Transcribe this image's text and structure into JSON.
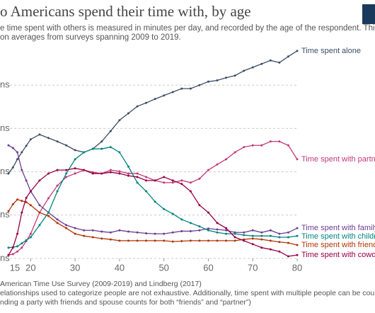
{
  "chart_data": {
    "type": "line",
    "title": "o Americans spend their time with, by age",
    "subtitle": [
      "e time spent with others is measured in minutes per day, and recorded by the age of the respondent. This is",
      "on averages from surveys spanning 2009 to 2019."
    ],
    "source": "American Time Use Survey (2009-2019) and Lindberg (2017)",
    "notes": [
      "elationships used to categorize people are not exhaustive. Additionally, time spent with multiple people can be counted more than",
      "nding a party with friends and spouse counts for both “friends” and “partner”)"
    ],
    "x": [
      15,
      16,
      17,
      18,
      19,
      20,
      22,
      24,
      26,
      28,
      30,
      32,
      34,
      36,
      38,
      40,
      42,
      44,
      46,
      48,
      50,
      52,
      54,
      56,
      58,
      60,
      62,
      64,
      66,
      68,
      70,
      72,
      74,
      76,
      78,
      80
    ],
    "xlim": [
      15,
      80
    ],
    "xticks": [
      15,
      20,
      30,
      40,
      50,
      60,
      70,
      80
    ],
    "ylim": [
      0,
      500
    ],
    "yticks": [
      {
        "value": 0,
        "label": "ns"
      },
      {
        "value": 100,
        "label": "ns"
      },
      {
        "value": 200,
        "label": "ns"
      },
      {
        "value": 300,
        "label": "ns"
      },
      {
        "value": 400,
        "label": "ns"
      }
    ],
    "grid": true,
    "series": [
      {
        "name": "Time spent alone",
        "color": "#3c4e66",
        "values": [
          196,
          210,
          229,
          245,
          260,
          275,
          286,
          278,
          270,
          261,
          250,
          245,
          253,
          270,
          294,
          319,
          335,
          351,
          359,
          368,
          376,
          384,
          392,
          392,
          400,
          408,
          411,
          417,
          422,
          433,
          441,
          449,
          457,
          452,
          466,
          479
        ]
      },
      {
        "name": "Time spent with partne",
        "color": "#c4387a",
        "values": [
          8,
          10,
          16,
          25,
          40,
          57,
          106,
          139,
          168,
          188,
          196,
          204,
          199,
          196,
          204,
          201,
          196,
          196,
          188,
          180,
          175,
          175,
          180,
          175,
          184,
          204,
          217,
          229,
          245,
          257,
          261,
          261,
          270,
          270,
          261,
          229
        ]
      },
      {
        "name": "Time spent with family",
        "color": "#6d3e91",
        "values": [
          261,
          255,
          245,
          204,
          180,
          155,
          123,
          106,
          90,
          77,
          70,
          65,
          65,
          62,
          60,
          65,
          62,
          60,
          58,
          57,
          57,
          60,
          63,
          63,
          65,
          69,
          67,
          65,
          60,
          60,
          65,
          60,
          65,
          57,
          60,
          70
        ]
      },
      {
        "name": "Time spent with childre",
        "color": "#00847e",
        "values": [
          25,
          26,
          28,
          35,
          42,
          49,
          77,
          106,
          155,
          196,
          229,
          245,
          253,
          253,
          257,
          245,
          212,
          175,
          155,
          131,
          114,
          103,
          90,
          82,
          74,
          65,
          60,
          57,
          57,
          54,
          52,
          52,
          52,
          49,
          49,
          52
        ]
      },
      {
        "name": "Time spent with friends",
        "color": "#b13507",
        "values": [
          109,
          125,
          136,
          133,
          130,
          123,
          106,
          98,
          82,
          70,
          57,
          52,
          49,
          46,
          44,
          41,
          41,
          41,
          41,
          41,
          41,
          39,
          40,
          41,
          41,
          41,
          41,
          41,
          41,
          44,
          46,
          44,
          41,
          38,
          36,
          31
        ]
      },
      {
        "name": "Time spent with cowork",
        "color": "#970046",
        "values": [
          8,
          25,
          57,
          106,
          140,
          155,
          180,
          196,
          204,
          204,
          208,
          204,
          196,
          196,
          199,
          196,
          191,
          188,
          180,
          180,
          188,
          180,
          172,
          155,
          123,
          106,
          82,
          70,
          49,
          41,
          33,
          25,
          21,
          16,
          5,
          8
        ]
      }
    ]
  }
}
